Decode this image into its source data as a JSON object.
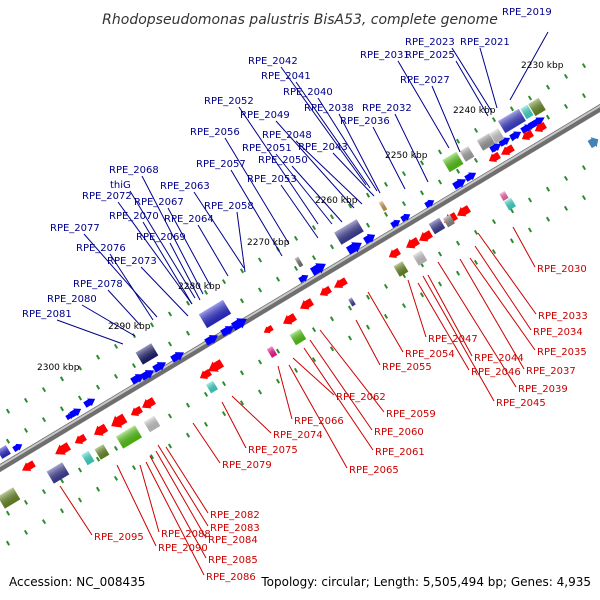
{
  "header": {
    "title": "Rhodopseudomonas palustris BisA53, complete genome"
  },
  "footer": {
    "accession": "Accession: NC_008435",
    "topology": "Topology: circular; Length: 5,505,494 bp; Genes: 4,935"
  },
  "colors": {
    "forward_label": "#00008b",
    "reverse_label": "#cc0000",
    "forward_gene": "#0000ff",
    "reverse_gene": "#ff0000",
    "backbone": "#808080",
    "tick": "#2e8b2e"
  },
  "scale_labels": [
    "2230 kbp",
    "2240 kbp",
    "2250 kbp",
    "2260 kbp",
    "2270 kbp",
    "2280 kbp",
    "2290 kbp",
    "2300 kbp"
  ],
  "forward_labels": [
    "RPE_2019",
    "RPE_2021",
    "RPE_2023",
    "RPE_2025",
    "RPE_2027",
    "RPE_2031",
    "RPE_2032",
    "RPE_2036",
    "RPE_2038",
    "RPE_2040",
    "RPE_2041",
    "RPE_2042",
    "RPE_2043",
    "RPE_2048",
    "RPE_2049",
    "RPE_2050",
    "RPE_2051",
    "RPE_2052",
    "RPE_2053",
    "RPE_2056",
    "RPE_2057",
    "RPE_2058",
    "RPE_2063",
    "RPE_2064",
    "RPE_2067",
    "RPE_2068",
    "thiG",
    "RPE_2072",
    "RPE_2070",
    "RPE_2069",
    "RPE_2077",
    "RPE_2076",
    "RPE_2073",
    "RPE_2078",
    "RPE_2080",
    "RPE_2081"
  ],
  "reverse_labels": [
    "RPE_2030",
    "RPE_2033",
    "RPE_2034",
    "RPE_2035",
    "RPE_2037",
    "RPE_2039",
    "RPE_2045",
    "RPE_2046",
    "RPE_2044",
    "RPE_2047",
    "RPE_2054",
    "RPE_2055",
    "RPE_2059",
    "RPE_2060",
    "RPE_2061",
    "RPE_2062",
    "RPE_2065",
    "RPE_2066",
    "RPE_2074",
    "RPE_2075",
    "RPE_2079",
    "RPE_2082",
    "RPE_2083",
    "RPE_2084",
    "RPE_2085",
    "RPE_2086",
    "RPE_2088",
    "RPE_2090",
    "RPE_2095"
  ]
}
